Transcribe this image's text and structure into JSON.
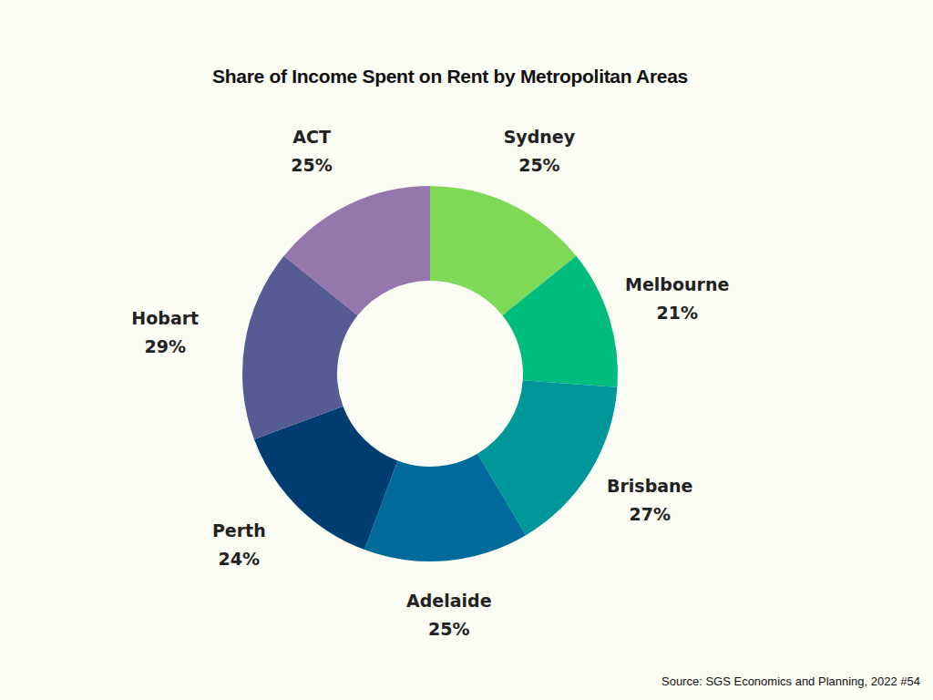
{
  "chart_data": {
    "type": "pie",
    "title": "Share of Income Spent on Rent by Metropolitan Areas",
    "categories": [
      "Sydney",
      "Melbourne",
      "Brisbane",
      "Adelaide",
      "Perth",
      "Hobart",
      "ACT"
    ],
    "values": [
      25,
      21,
      27,
      25,
      24,
      29,
      25
    ],
    "value_labels": [
      "25%",
      "21%",
      "27%",
      "25%",
      "24%",
      "29%",
      "25%"
    ],
    "colors": [
      "#7ed957",
      "#00bc7d",
      "#00979a",
      "#006b9a",
      "#003d73",
      "#575b94",
      "#9677ad"
    ],
    "data_labels": true,
    "source": "Source: SGS Economics and Planning, 2022 #54"
  }
}
